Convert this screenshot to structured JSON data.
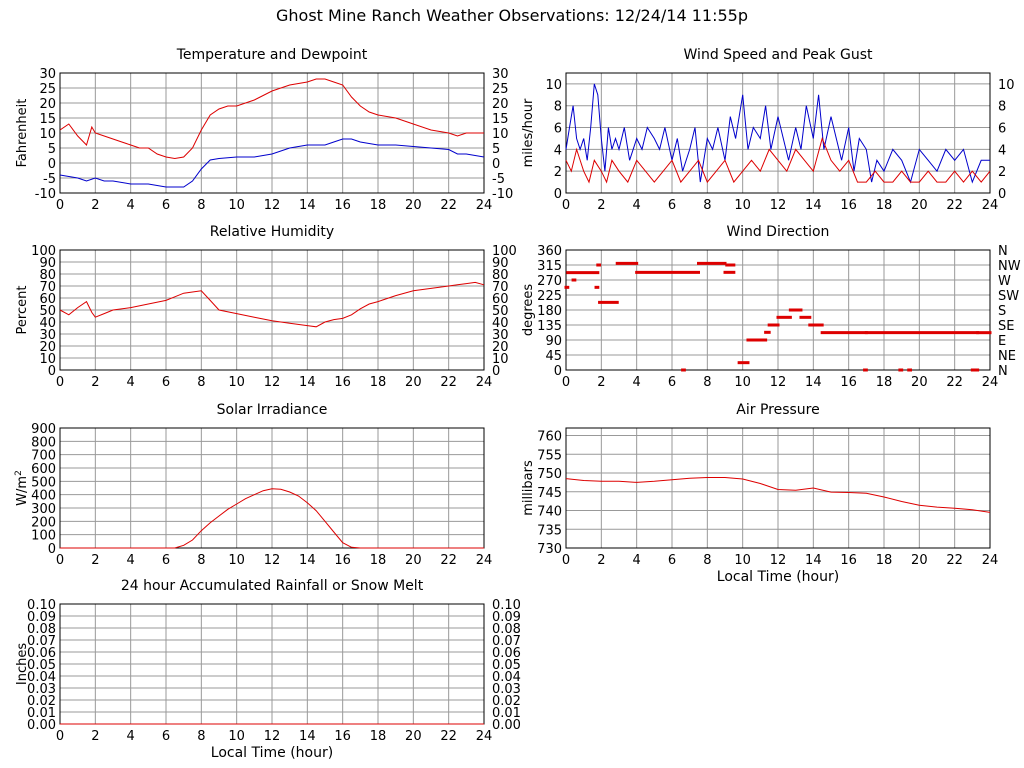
{
  "page": {
    "title": "Ghost Mine Ranch Weather Observations: 12/24/14 11:55p"
  },
  "colors": {
    "primary": "#dd0000",
    "secondary": "#0000cc",
    "grid": "#999999",
    "frame": "#000000"
  },
  "chart_data": [
    {
      "id": "temp",
      "type": "line",
      "title": "Temperature and Dewpoint",
      "xlabel": "",
      "ylabel": "Fahrenheit",
      "xlim": [
        0,
        24
      ],
      "ylim": [
        -10,
        30
      ],
      "xticks": [
        0,
        2,
        4,
        6,
        8,
        10,
        12,
        14,
        16,
        18,
        20,
        22,
        24
      ],
      "yticks": [
        -10,
        -5,
        0,
        5,
        10,
        15,
        20,
        25,
        30
      ],
      "right_ticks": [
        -10,
        -5,
        0,
        5,
        10,
        15,
        20,
        25,
        30
      ],
      "series": [
        {
          "color": "#dd0000",
          "x": [
            0,
            0.5,
            1,
            1.5,
            1.8,
            2,
            2.5,
            3,
            3.5,
            4,
            4.5,
            5,
            5.5,
            6,
            6.5,
            7,
            7.5,
            8,
            8.5,
            9,
            9.5,
            10,
            11,
            12,
            13,
            14,
            14.5,
            15,
            15.5,
            16,
            16.5,
            17,
            17.5,
            18,
            19,
            20,
            21,
            22,
            22.5,
            23,
            23.5,
            24
          ],
          "y": [
            11,
            13,
            9,
            6,
            12,
            10,
            9,
            8,
            7,
            6,
            5,
            5,
            3,
            2,
            1.5,
            2,
            5,
            11,
            16,
            18,
            19,
            19,
            21,
            24,
            26,
            27,
            28,
            28,
            27,
            26,
            22,
            19,
            17,
            16,
            15,
            13,
            11,
            10,
            9,
            10,
            10,
            10
          ]
        },
        {
          "color": "#0000cc",
          "x": [
            0,
            1,
            1.5,
            2,
            2.5,
            3,
            4,
            5,
            6,
            7,
            7.5,
            8,
            8.5,
            9,
            10,
            11,
            12,
            13,
            14,
            14.5,
            15,
            15.5,
            16,
            16.5,
            17,
            18,
            19,
            20,
            21,
            22,
            22.5,
            23,
            24
          ],
          "y": [
            -4,
            -5,
            -6,
            -5,
            -6,
            -6,
            -7,
            -7,
            -8,
            -8,
            -6,
            -2,
            1,
            1.5,
            2,
            2,
            3,
            5,
            6,
            6,
            6,
            7,
            8,
            8,
            7,
            6,
            6,
            5.5,
            5,
            4.5,
            3,
            3,
            2
          ]
        }
      ]
    },
    {
      "id": "wind",
      "type": "line",
      "title": "Wind Speed and Peak Gust",
      "xlabel": "",
      "ylabel": "miles/hour",
      "xlim": [
        0,
        24
      ],
      "ylim": [
        0,
        11
      ],
      "xticks": [
        0,
        2,
        4,
        6,
        8,
        10,
        12,
        14,
        16,
        18,
        20,
        22,
        24
      ],
      "yticks": [
        0,
        2,
        4,
        6,
        8,
        10
      ],
      "right_ticks": [
        0,
        2,
        4,
        6,
        8,
        10
      ],
      "series": [
        {
          "color": "#0000cc",
          "x": [
            0,
            0.2,
            0.4,
            0.6,
            0.8,
            1,
            1.2,
            1.4,
            1.6,
            1.8,
            2,
            2.2,
            2.4,
            2.6,
            2.8,
            3,
            3.3,
            3.6,
            4,
            4.3,
            4.6,
            5,
            5.3,
            5.6,
            6,
            6.3,
            6.6,
            7,
            7.3,
            7.6,
            8,
            8.3,
            8.6,
            9,
            9.3,
            9.6,
            10,
            10.3,
            10.6,
            11,
            11.3,
            11.6,
            12,
            12.3,
            12.6,
            13,
            13.3,
            13.6,
            14,
            14.3,
            14.6,
            15,
            15.3,
            15.6,
            16,
            16.3,
            16.6,
            17,
            17.3,
            17.6,
            18,
            18.5,
            19,
            19.5,
            20,
            20.5,
            21,
            21.5,
            22,
            22.5,
            23,
            23.5,
            24
          ],
          "y": [
            4,
            6,
            8,
            5,
            4,
            5,
            3,
            6,
            10,
            9,
            5,
            2,
            6,
            4,
            5,
            4,
            6,
            3,
            5,
            4,
            6,
            5,
            4,
            6,
            3,
            5,
            2,
            4,
            6,
            1,
            5,
            4,
            6,
            3,
            7,
            5,
            9,
            4,
            6,
            5,
            8,
            4,
            7,
            5,
            3,
            6,
            4,
            8,
            5,
            9,
            4,
            7,
            5,
            3,
            6,
            2,
            5,
            4,
            1,
            3,
            2,
            4,
            3,
            1,
            4,
            3,
            2,
            4,
            3,
            4,
            1,
            3,
            3
          ]
        },
        {
          "color": "#dd0000",
          "x": [
            0,
            0.3,
            0.6,
            1,
            1.3,
            1.6,
            2,
            2.3,
            2.6,
            3,
            3.5,
            4,
            4.5,
            5,
            5.5,
            6,
            6.5,
            7,
            7.5,
            8,
            8.5,
            9,
            9.5,
            10,
            10.5,
            11,
            11.5,
            12,
            12.5,
            13,
            13.5,
            14,
            14.5,
            15,
            15.5,
            16,
            16.5,
            17,
            17.5,
            18,
            18.5,
            19,
            19.5,
            20,
            20.5,
            21,
            21.5,
            22,
            22.5,
            23,
            23.5,
            24
          ],
          "y": [
            3,
            2,
            4,
            2,
            1,
            3,
            2,
            1,
            3,
            2,
            1,
            3,
            2,
            1,
            2,
            3,
            1,
            2,
            3,
            1,
            2,
            3,
            1,
            2,
            3,
            2,
            4,
            3,
            2,
            4,
            3,
            2,
            5,
            3,
            2,
            3,
            1,
            1,
            2,
            1,
            1,
            2,
            1,
            1,
            2,
            1,
            1,
            2,
            1,
            2,
            1,
            2
          ]
        }
      ]
    },
    {
      "id": "humidity",
      "type": "line",
      "title": "Relative Humidity",
      "xlabel": "",
      "ylabel": "Percent",
      "xlim": [
        0,
        24
      ],
      "ylim": [
        0,
        100
      ],
      "xticks": [
        0,
        2,
        4,
        6,
        8,
        10,
        12,
        14,
        16,
        18,
        20,
        22,
        24
      ],
      "yticks": [
        0,
        10,
        20,
        30,
        40,
        50,
        60,
        70,
        80,
        90,
        100
      ],
      "right_ticks": [
        0,
        10,
        20,
        30,
        40,
        50,
        60,
        70,
        80,
        90,
        100
      ],
      "series": [
        {
          "color": "#dd0000",
          "x": [
            0,
            0.5,
            1,
            1.5,
            1.8,
            2,
            2.5,
            3,
            4,
            5,
            6,
            6.5,
            7,
            7.5,
            8,
            8.5,
            9,
            10,
            11,
            12,
            13,
            14,
            14.5,
            15,
            15.5,
            16,
            16.5,
            17,
            17.5,
            18,
            19,
            20,
            21,
            22,
            22.5,
            23,
            23.5,
            24
          ],
          "y": [
            50,
            46,
            52,
            57,
            48,
            44,
            47,
            50,
            52,
            55,
            58,
            61,
            64,
            65,
            66,
            58,
            50,
            47,
            44,
            41,
            39,
            37,
            36,
            40,
            42,
            43,
            46,
            51,
            55,
            57,
            62,
            66,
            68,
            70,
            71,
            72,
            73,
            71
          ]
        }
      ]
    },
    {
      "id": "direction",
      "type": "scatter",
      "title": "Wind Direction",
      "xlabel": "",
      "ylabel": "degrees",
      "xlim": [
        0,
        24
      ],
      "ylim": [
        0,
        360
      ],
      "xticks": [
        0,
        2,
        4,
        6,
        8,
        10,
        12,
        14,
        16,
        18,
        20,
        22,
        24
      ],
      "yticks": [
        0,
        45,
        90,
        135,
        180,
        225,
        270,
        315,
        360
      ],
      "right_ticks": [
        "N",
        "NE",
        "E",
        "SE",
        "S",
        "SW",
        "W",
        "NW",
        "N"
      ],
      "series": [
        {
          "color": "#dd0000",
          "segments": [
            [
              0,
              0.1,
              248
            ],
            [
              0.4,
              0.5,
              270
            ],
            [
              0.1,
              1.8,
              292
            ],
            [
              1.8,
              1.9,
              315
            ],
            [
              1.9,
              2.9,
              203
            ],
            [
              2.9,
              4,
              320
            ],
            [
              4,
              7.5,
              293
            ],
            [
              7.5,
              9,
              320
            ],
            [
              9,
              9.5,
              293
            ],
            [
              9.1,
              9.5,
              315
            ],
            [
              9.8,
              10.3,
              22
            ],
            [
              10.3,
              11.3,
              90
            ],
            [
              11.3,
              11.5,
              113
            ],
            [
              11.5,
              12,
              135
            ],
            [
              12,
              12.7,
              158
            ],
            [
              12.7,
              13.3,
              180
            ],
            [
              13.3,
              13.8,
              158
            ],
            [
              13.8,
              14.5,
              135
            ],
            [
              14.5,
              17,
              112
            ],
            [
              17,
              23.3,
              112
            ],
            [
              23.3,
              24,
              112
            ],
            [
              6.6,
              6.7,
              0
            ],
            [
              16.9,
              17,
              0
            ],
            [
              18.9,
              19,
              0
            ],
            [
              19.4,
              19.5,
              0
            ],
            [
              23,
              23.3,
              0
            ],
            [
              1.7,
              1.8,
              248
            ]
          ]
        }
      ]
    },
    {
      "id": "solar",
      "type": "line",
      "title": "Solar Irradiance",
      "xlabel": "",
      "ylabel": "W/m",
      "ylabel_sup": "2",
      "xlim": [
        0,
        24
      ],
      "ylim": [
        0,
        900
      ],
      "xticks": [
        0,
        2,
        4,
        6,
        8,
        10,
        12,
        14,
        16,
        18,
        20,
        22,
        24
      ],
      "yticks": [
        0,
        100,
        200,
        300,
        400,
        500,
        600,
        700,
        800,
        900
      ],
      "right_ticks": [],
      "series": [
        {
          "color": "#dd0000",
          "x": [
            0,
            6.5,
            7,
            7.5,
            8,
            8.5,
            9,
            9.5,
            10,
            10.5,
            11,
            11.5,
            12,
            12.5,
            13,
            13.5,
            14,
            14.5,
            15,
            15.5,
            16,
            16.5,
            17,
            24
          ],
          "y": [
            0,
            0,
            20,
            60,
            130,
            190,
            240,
            290,
            330,
            370,
            400,
            430,
            445,
            440,
            420,
            390,
            340,
            280,
            200,
            120,
            40,
            5,
            0,
            0
          ]
        }
      ]
    },
    {
      "id": "pressure",
      "type": "line",
      "title": "Air Pressure",
      "xlabel": "Local Time (hour)",
      "ylabel": "millibars",
      "xlim": [
        0,
        24
      ],
      "ylim": [
        730,
        762
      ],
      "xticks": [
        0,
        2,
        4,
        6,
        8,
        10,
        12,
        14,
        16,
        18,
        20,
        22,
        24
      ],
      "yticks": [
        730,
        735,
        740,
        745,
        750,
        755,
        760
      ],
      "right_ticks": [],
      "series": [
        {
          "color": "#dd0000",
          "x": [
            0,
            1,
            2,
            3,
            4,
            5,
            6,
            7,
            8,
            9,
            10,
            11,
            12,
            13,
            14,
            15,
            16,
            17,
            18,
            19,
            20,
            21,
            22,
            23,
            24
          ],
          "y": [
            748.5,
            748,
            747.8,
            747.8,
            747.5,
            747.8,
            748.2,
            748.6,
            748.8,
            748.8,
            748.4,
            747.2,
            745.6,
            745.4,
            746,
            744.9,
            744.8,
            744.6,
            743.6,
            742.4,
            741.4,
            740.9,
            740.6,
            740.2,
            739.5
          ]
        }
      ]
    },
    {
      "id": "rain",
      "type": "line",
      "title": "24 hour Accumulated Rainfall or Snow Melt",
      "xlabel": "Local Time (hour)",
      "ylabel": "Inches",
      "xlim": [
        0,
        24
      ],
      "ylim": [
        0,
        0.1
      ],
      "xticks": [
        0,
        2,
        4,
        6,
        8,
        10,
        12,
        14,
        16,
        18,
        20,
        22,
        24
      ],
      "yticks": [
        "0.00",
        "0.01",
        "0.02",
        "0.03",
        "0.04",
        "0.05",
        "0.06",
        "0.07",
        "0.08",
        "0.09",
        "0.10"
      ],
      "right_ticks": [
        "0.00",
        "0.01",
        "0.02",
        "0.03",
        "0.04",
        "0.05",
        "0.06",
        "0.07",
        "0.08",
        "0.09",
        "0.10"
      ],
      "series": [
        {
          "color": "#dd0000",
          "x": [
            0,
            24
          ],
          "y": [
            0,
            0
          ]
        }
      ]
    }
  ]
}
